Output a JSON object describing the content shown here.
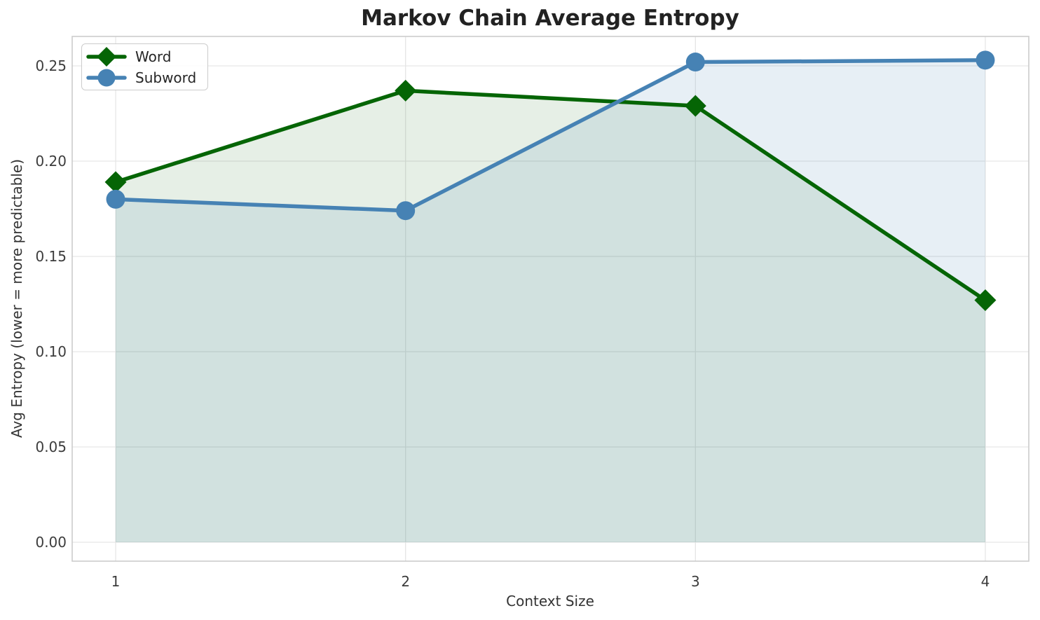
{
  "chart_data": {
    "type": "line",
    "title": "Markov Chain Average Entropy",
    "xlabel": "Context Size",
    "ylabel": "Avg Entropy (lower = more predictable)",
    "x": [
      1,
      2,
      3,
      4
    ],
    "xtick_labels": [
      "1",
      "2",
      "3",
      "4"
    ],
    "yticks": [
      0.0,
      0.05,
      0.1,
      0.15,
      0.2,
      0.25
    ],
    "ytick_labels": [
      "0.00",
      "0.05",
      "0.10",
      "0.15",
      "0.20",
      "0.25"
    ],
    "xlim": [
      0.85,
      4.15
    ],
    "ylim": [
      -0.00993,
      0.26544
    ],
    "grid": true,
    "legend_position": "upper left",
    "series": [
      {
        "name": "Word",
        "marker": "diamond",
        "color": "#056505",
        "fill_opacity": 0.1,
        "fill_to_zero": true,
        "values": [
          0.189,
          0.237,
          0.229,
          0.127
        ]
      },
      {
        "name": "Subword",
        "marker": "circle",
        "color": "#4682b4",
        "fill_opacity": 0.13,
        "fill_to_zero": true,
        "values": [
          0.18,
          0.174,
          0.252,
          0.253
        ]
      }
    ],
    "text_color": "#262626",
    "tick_label_color": "#3c3c3c",
    "grid_color": "#e6e6e6",
    "spine_color": "#cccccc"
  }
}
